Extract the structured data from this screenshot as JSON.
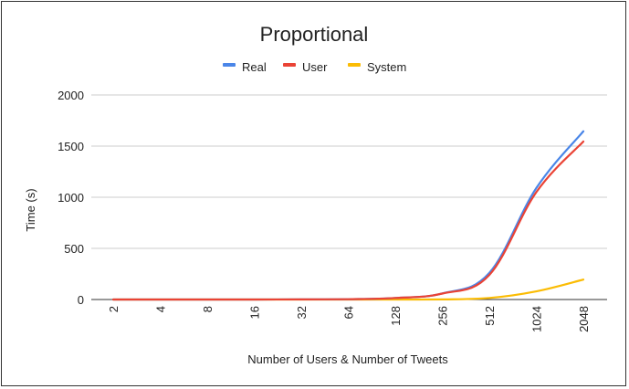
{
  "chart_data": {
    "type": "line",
    "title": "Proportional",
    "xlabel": "Number of Users & Number of Tweets",
    "ylabel": "Time (s)",
    "categories": [
      "2",
      "4",
      "8",
      "16",
      "32",
      "64",
      "128",
      "256",
      "512",
      "1024",
      "2048"
    ],
    "ylim": [
      0,
      2000
    ],
    "yticks": [
      "0",
      "500",
      "1000",
      "1500",
      "2000"
    ],
    "grid": true,
    "legend_position": "top",
    "series": [
      {
        "name": "Real",
        "color": "#4a86e8",
        "values": [
          0,
          0,
          0,
          0,
          1,
          3,
          15,
          60,
          260,
          1090,
          1645
        ]
      },
      {
        "name": "User",
        "color": "#ea4335",
        "values": [
          0,
          0,
          0,
          0,
          1,
          3,
          15,
          58,
          240,
          1050,
          1545
        ]
      },
      {
        "name": "System",
        "color": "#fbbc04",
        "values": [
          0,
          0,
          0,
          0,
          0,
          0,
          0,
          1,
          15,
          80,
          195
        ]
      }
    ]
  }
}
